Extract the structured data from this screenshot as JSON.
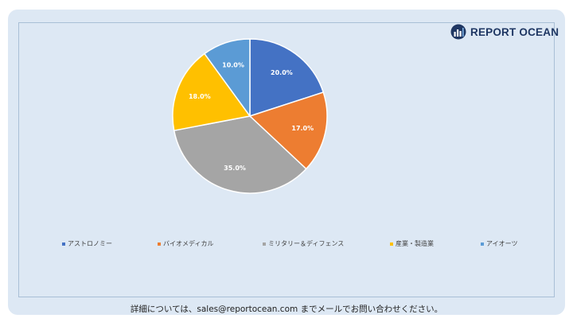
{
  "brand": {
    "name": "REPORT OCEAN"
  },
  "chart_data": {
    "type": "pie",
    "title": "",
    "categories": [
      "アストロノミー",
      "バイオメディカル",
      "ミリタリー＆ディフェンス",
      "産業・製造業",
      "アイオーツ"
    ],
    "values": [
      20.0,
      17.0,
      35.0,
      18.0,
      10.0
    ],
    "data_labels": [
      "20.0%",
      "17.0%",
      "35.0%",
      "18.0%",
      "10.0%"
    ],
    "colors": [
      "#4472c4",
      "#ed7d31",
      "#a5a5a5",
      "#ffc000",
      "#5b9bd5"
    ],
    "legend_position": "bottom"
  },
  "footer": {
    "text": "詳細については、sales@reportocean.com までメールでお問い合わせください。"
  }
}
